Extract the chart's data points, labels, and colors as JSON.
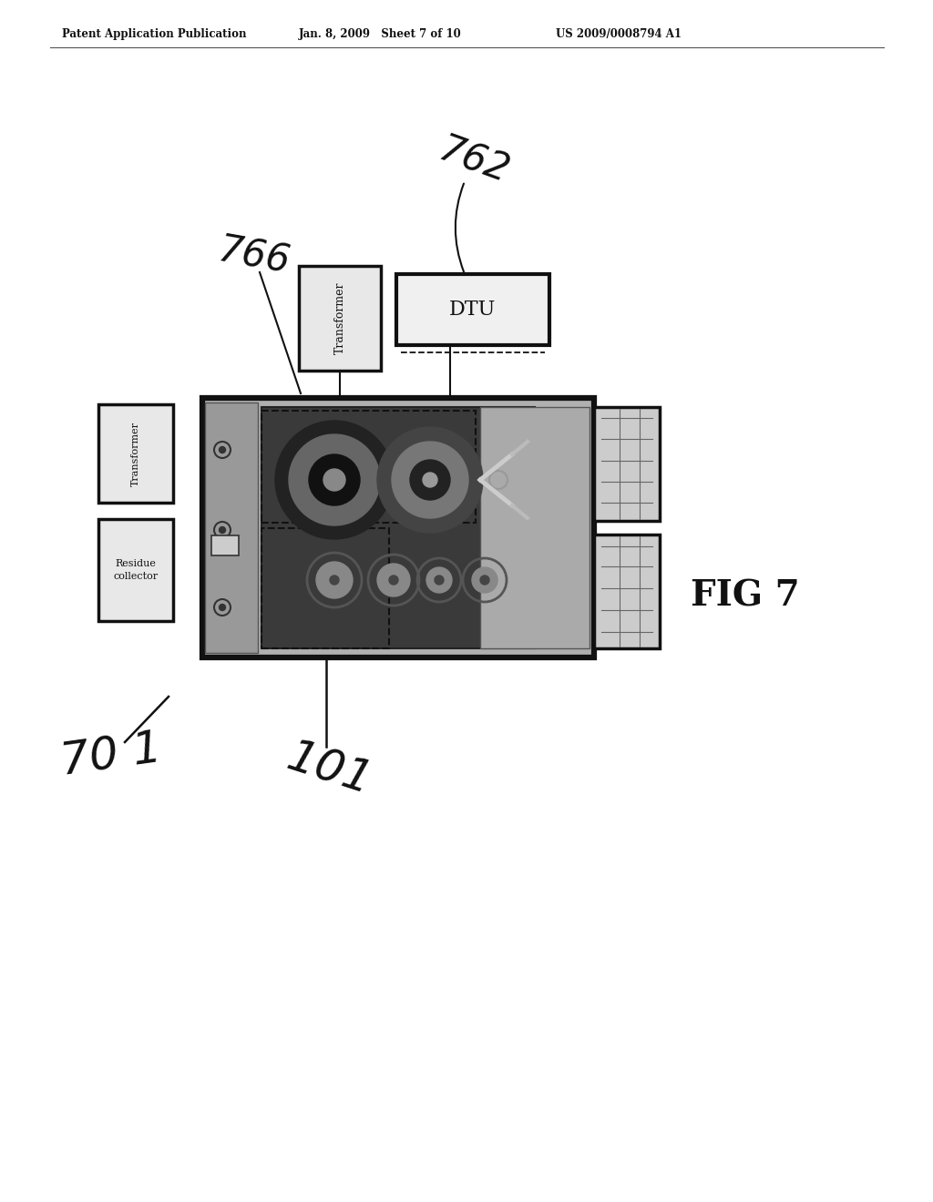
{
  "header_left": "Patent Application Publication",
  "header_mid": "Jan. 8, 2009   Sheet 7 of 10",
  "header_right": "US 2009/0008794 A1",
  "fig_label": "FIG 7",
  "label_766": "766",
  "label_762": "762",
  "label_701": "70 1",
  "label_101": "101",
  "transformer_top_text": "Transformer",
  "dtu_text": "DTU",
  "transformer_left_text": "Transformer",
  "residue_text": "Residue\ncollector",
  "bg": "#ffffff",
  "blk": "#111111",
  "gray_light": "#d0d0d0",
  "gray_mid": "#888888",
  "gray_dark": "#3a3a3a"
}
